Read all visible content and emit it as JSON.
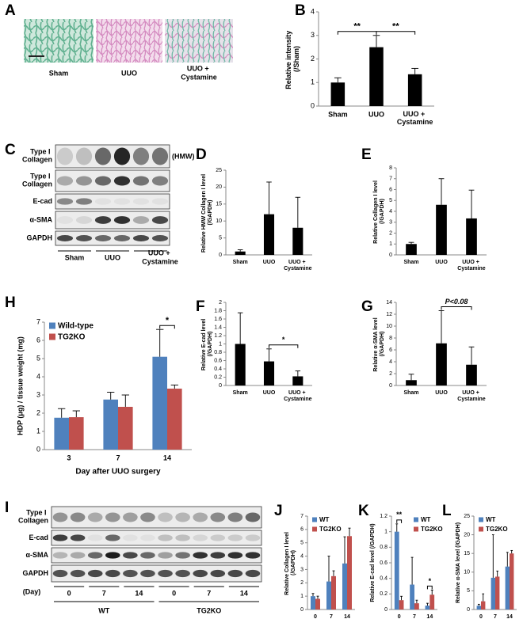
{
  "figure": {
    "panel_a": {
      "panel": "A",
      "labels": [
        "Sham",
        "UUO",
        "UUO + Cystamine"
      ]
    },
    "panel_c": {
      "panel": "C",
      "rows": [
        "Type I Collagen",
        "Type I Collagen",
        "E-cad",
        "α-SMA",
        "GAPDH"
      ],
      "note": "(HMW)",
      "groups": [
        "Sham",
        "UUO",
        "UUO + Cystamine"
      ]
    },
    "panel_i": {
      "panel": "I",
      "rows": [
        "Type I Collagen",
        "E-cad",
        "α-SMA",
        "GAPDH"
      ],
      "day_label": "(Day)",
      "days": [
        "0",
        "7",
        "14",
        "0",
        "7",
        "14"
      ],
      "groups": [
        "WT",
        "TG2KO"
      ]
    }
  },
  "chart_data": [
    {
      "panel": "B",
      "type": "bar",
      "ylabel": "Relative intensity (/Sham)",
      "categories": [
        "Sham",
        "UUO",
        "UUO + Cystamine"
      ],
      "series": [
        {
          "color": "#000000",
          "values": [
            1.0,
            2.5,
            1.35
          ],
          "errors": [
            0.2,
            0.5,
            0.25
          ]
        }
      ],
      "ylim": [
        0,
        4
      ],
      "yticks": [
        0,
        1,
        2,
        3,
        4
      ],
      "annotations": [
        {
          "text": "**",
          "between": [
            "Sham",
            "UUO"
          ]
        },
        {
          "text": "**",
          "between": [
            "UUO",
            "UUO + Cystamine"
          ]
        }
      ]
    },
    {
      "panel": "D",
      "type": "bar",
      "ylabel": "Relative HMW Collagen I level (/GAPDH)",
      "categories": [
        "Sham",
        "UUO",
        "UUO + Cystamine"
      ],
      "series": [
        {
          "color": "#000000",
          "values": [
            1,
            12,
            8
          ],
          "errors": [
            0.5,
            9.5,
            9
          ]
        }
      ],
      "ylim": [
        0,
        25
      ],
      "yticks": [
        0,
        5,
        10,
        15,
        20,
        25
      ]
    },
    {
      "panel": "E",
      "type": "bar",
      "ylabel": "Relative Collagen I level (/GAPDH)",
      "categories": [
        "Sham",
        "UUO",
        "UUO + Cystamine"
      ],
      "series": [
        {
          "color": "#000000",
          "values": [
            1,
            4.6,
            3.35
          ],
          "errors": [
            0.15,
            2.4,
            2.6
          ]
        }
      ],
      "ylim": [
        0,
        8
      ],
      "yticks": [
        0,
        1,
        2,
        3,
        4,
        5,
        6,
        7,
        8
      ]
    },
    {
      "panel": "F",
      "type": "bar",
      "ylabel": "Relative E-cad level (/GAPDH)",
      "categories": [
        "Sham",
        "UUO",
        "UUO + Cystamine"
      ],
      "series": [
        {
          "color": "#000000",
          "values": [
            1,
            0.58,
            0.22
          ],
          "errors": [
            0.75,
            0.3,
            0.13
          ]
        }
      ],
      "ylim": [
        0,
        2
      ],
      "yticks": [
        0,
        0.2,
        0.4,
        0.6,
        0.8,
        1,
        1.2,
        1.4,
        1.6,
        1.8,
        2
      ],
      "annotations": [
        {
          "text": "*",
          "between": [
            "UUO",
            "UUO + Cystamine"
          ]
        }
      ]
    },
    {
      "panel": "G",
      "type": "bar",
      "ylabel": "Relative α-SMA level (/GAPDH)",
      "categories": [
        "Sham",
        "UUO",
        "UUO + Cystamine"
      ],
      "series": [
        {
          "color": "#000000",
          "values": [
            0.9,
            7.1,
            3.5
          ],
          "errors": [
            1.0,
            5.5,
            3.0
          ]
        }
      ],
      "ylim": [
        0,
        14
      ],
      "yticks": [
        0,
        2,
        4,
        6,
        8,
        10,
        12,
        14
      ],
      "annotations": [
        {
          "text": "P<0.08",
          "between": [
            "UUO",
            "UUO + Cystamine"
          ]
        }
      ]
    },
    {
      "panel": "H",
      "type": "bar",
      "ylabel": "HDP (μg) / tissue weight (mg)",
      "xlabel": "Day after UUO surgery",
      "categories": [
        "3",
        "7",
        "14"
      ],
      "series": [
        {
          "name": "Wild-type",
          "color": "#4f81bd",
          "values": [
            1.75,
            2.75,
            5.1
          ],
          "errors": [
            0.5,
            0.4,
            1.5
          ]
        },
        {
          "name": "TG2KO",
          "color": "#c0504d",
          "values": [
            1.78,
            2.35,
            3.35
          ],
          "errors": [
            0.35,
            0.65,
            0.2
          ]
        }
      ],
      "ylim": [
        0,
        7
      ],
      "yticks": [
        0,
        1,
        2,
        3,
        4,
        5,
        6,
        7
      ],
      "legend": "top-left",
      "annotations": [
        {
          "text": "*",
          "between": [
            "14"
          ]
        }
      ]
    },
    {
      "panel": "J",
      "type": "bar",
      "ylabel": "Relative Collagen I level (/GAPDH)",
      "categories": [
        "0",
        "7",
        "14"
      ],
      "series": [
        {
          "name": "WT",
          "color": "#4f81bd",
          "values": [
            1.0,
            2.1,
            3.45
          ],
          "errors": [
            0.2,
            1.9,
            2.0
          ]
        },
        {
          "name": "TG2KO",
          "color": "#c0504d",
          "values": [
            0.8,
            2.5,
            5.5
          ],
          "errors": [
            0.2,
            0.4,
            0.6
          ]
        }
      ],
      "ylim": [
        0,
        7
      ],
      "yticks": [
        0,
        1,
        2,
        3,
        4,
        5,
        6,
        7
      ],
      "legend": "top-left"
    },
    {
      "panel": "K",
      "type": "bar",
      "ylabel": "Relative E-cad level (/GAPDH)",
      "categories": [
        "0",
        "7",
        "14"
      ],
      "series": [
        {
          "name": "WT",
          "color": "#4f81bd",
          "values": [
            1.0,
            0.32,
            0.05
          ],
          "errors": [
            0.1,
            0.35,
            0.03
          ]
        },
        {
          "name": "TG2KO",
          "color": "#c0504d",
          "values": [
            0.12,
            0.08,
            0.19
          ],
          "errors": [
            0.05,
            0.04,
            0.06
          ]
        }
      ],
      "ylim": [
        0,
        1.2
      ],
      "yticks": [
        0,
        0.2,
        0.4,
        0.6,
        0.8,
        1,
        1.2
      ],
      "legend": "top-right",
      "annotations": [
        {
          "text": "**",
          "between": [
            "0"
          ]
        },
        {
          "text": "*",
          "between": [
            "14"
          ]
        }
      ]
    },
    {
      "panel": "L",
      "type": "bar",
      "ylabel": "Relative α-SMA level (/GAPDH)",
      "categories": [
        "0",
        "7",
        "14"
      ],
      "series": [
        {
          "name": "WT",
          "color": "#4f81bd",
          "values": [
            1,
            8.5,
            11.5
          ],
          "errors": [
            0.4,
            11.5,
            3.8
          ]
        },
        {
          "name": "TG2KO",
          "color": "#c0504d",
          "values": [
            2.2,
            8.8,
            15
          ],
          "errors": [
            2.0,
            1.5,
            0.8
          ]
        }
      ],
      "ylim": [
        0,
        25
      ],
      "yticks": [
        0,
        5,
        10,
        15,
        20,
        25
      ],
      "legend": "top-left"
    }
  ]
}
